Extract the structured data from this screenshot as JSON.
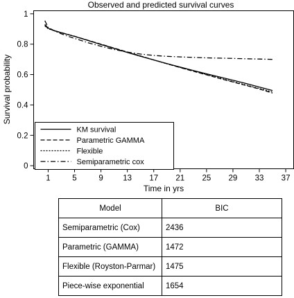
{
  "chart_data": {
    "type": "line",
    "title": "Observed and predicted survival curves",
    "xlabel": "Time in yrs",
    "ylabel": "Survival probability",
    "xlim": [
      -1.2,
      38.2
    ],
    "ylim": [
      -0.02,
      1.02
    ],
    "xticks": [
      1,
      5,
      9,
      13,
      17,
      21,
      25,
      29,
      33,
      37
    ],
    "yticks": [
      0,
      0.2,
      0.4,
      0.6,
      0.8,
      1
    ],
    "ytick_labels": [
      "0",
      "0.2",
      "0.4",
      "0.6",
      "0.8",
      "1"
    ],
    "grid": false,
    "legend_position": "bottom-left",
    "series": [
      {
        "name": "KM survival",
        "dash": "solid",
        "x": [
          0.5,
          1,
          2,
          3,
          4,
          5,
          7,
          9,
          11,
          13,
          15,
          17,
          19,
          21,
          23,
          25,
          27,
          29,
          31,
          33,
          35
        ],
        "y": [
          0.93,
          0.905,
          0.888,
          0.875,
          0.863,
          0.851,
          0.825,
          0.798,
          0.772,
          0.745,
          0.72,
          0.696,
          0.672,
          0.649,
          0.627,
          0.605,
          0.584,
          0.563,
          0.541,
          0.518,
          0.495
        ]
      },
      {
        "name": "Parametric GAMMA",
        "dash": "dashed",
        "x": [
          0.5,
          1,
          2,
          3,
          4,
          5,
          7,
          9,
          11,
          13,
          15,
          17,
          19,
          21,
          23,
          25,
          27,
          29,
          31,
          33,
          35
        ],
        "y": [
          0.925,
          0.903,
          0.888,
          0.876,
          0.864,
          0.852,
          0.826,
          0.8,
          0.774,
          0.748,
          0.722,
          0.696,
          0.671,
          0.646,
          0.622,
          0.598,
          0.574,
          0.551,
          0.528,
          0.505,
          0.478
        ]
      },
      {
        "name": "Flexible",
        "dash": "dotted",
        "x": [
          0.5,
          1,
          2,
          3,
          4,
          5,
          7,
          9,
          11,
          13,
          15,
          17,
          19,
          21,
          23,
          25,
          27,
          29,
          31,
          33,
          35
        ],
        "y": [
          0.92,
          0.902,
          0.887,
          0.875,
          0.863,
          0.851,
          0.825,
          0.799,
          0.773,
          0.747,
          0.721,
          0.696,
          0.671,
          0.647,
          0.623,
          0.6,
          0.577,
          0.554,
          0.531,
          0.508,
          0.485
        ]
      },
      {
        "name": "Semiparametric cox",
        "dash": "dashdot",
        "x": [
          0.5,
          1,
          2,
          3,
          4,
          5,
          7,
          9,
          11,
          13,
          15,
          17,
          19,
          21,
          23,
          25,
          27,
          29,
          31,
          33,
          35
        ],
        "y": [
          0.955,
          0.91,
          0.886,
          0.868,
          0.852,
          0.838,
          0.81,
          0.786,
          0.765,
          0.748,
          0.735,
          0.726,
          0.72,
          0.716,
          0.713,
          0.71,
          0.708,
          0.706,
          0.704,
          0.702,
          0.7
        ]
      }
    ]
  },
  "table": {
    "headers": [
      "Model",
      "BIC"
    ],
    "rows": [
      [
        "Semiparametric (Cox)",
        "2436"
      ],
      [
        "Parametric (GAMMA)",
        "1472"
      ],
      [
        "Flexible (Royston-Parmar)",
        "1475"
      ],
      [
        "Piece-wise exponential",
        "1654"
      ]
    ]
  }
}
